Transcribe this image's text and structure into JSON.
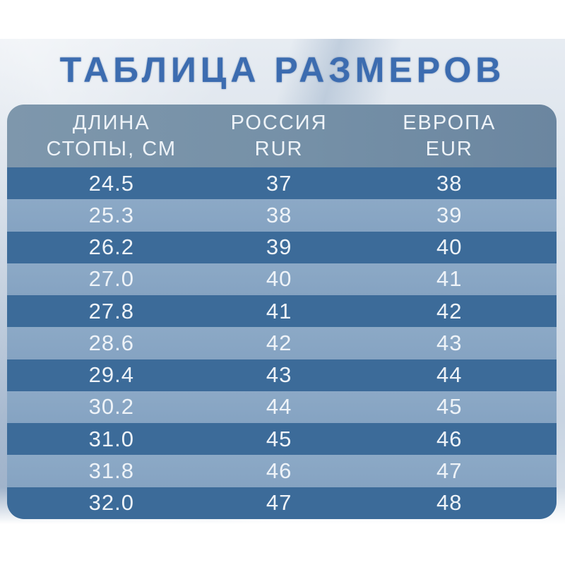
{
  "page": {
    "title": "ТАБЛИЦА РАЗМЕРОВ"
  },
  "table": {
    "columns": [
      {
        "line1": "ДЛИНА",
        "line2": "СТОПЫ, СМ"
      },
      {
        "line1": "РОССИЯ",
        "line2": "RUR"
      },
      {
        "line1": "ЕВРОПА",
        "line2": "EUR"
      }
    ],
    "rows": [
      [
        "24.5",
        "37",
        "38"
      ],
      [
        "25.3",
        "38",
        "39"
      ],
      [
        "26.2",
        "39",
        "40"
      ],
      [
        "27.0",
        "40",
        "41"
      ],
      [
        "27.8",
        "41",
        "42"
      ],
      [
        "28.6",
        "42",
        "43"
      ],
      [
        "29.4",
        "43",
        "44"
      ],
      [
        "30.2",
        "44",
        "45"
      ],
      [
        "31.0",
        "45",
        "46"
      ],
      [
        "31.8",
        "46",
        "47"
      ],
      [
        "32.0",
        "47",
        "48"
      ]
    ]
  },
  "colors": {
    "title_blue": "#3c6cb0",
    "header_bg": "#7590a7",
    "row_dark": "#3c6b99",
    "row_light": "#85a3c2",
    "text_light": "#eef3f8"
  },
  "chart_data": {
    "type": "table",
    "title": "ТАБЛИЦА РАЗМЕРОВ",
    "columns": [
      "ДЛИНА СТОПЫ, СМ",
      "РОССИЯ RUR",
      "ЕВРОПА EUR"
    ],
    "rows": [
      [
        24.5,
        37,
        38
      ],
      [
        25.3,
        38,
        39
      ],
      [
        26.2,
        39,
        40
      ],
      [
        27.0,
        40,
        41
      ],
      [
        27.8,
        41,
        42
      ],
      [
        28.6,
        42,
        43
      ],
      [
        29.4,
        43,
        44
      ],
      [
        30.2,
        44,
        45
      ],
      [
        31.0,
        45,
        46
      ],
      [
        31.8,
        46,
        47
      ],
      [
        32.0,
        47,
        48
      ]
    ]
  }
}
